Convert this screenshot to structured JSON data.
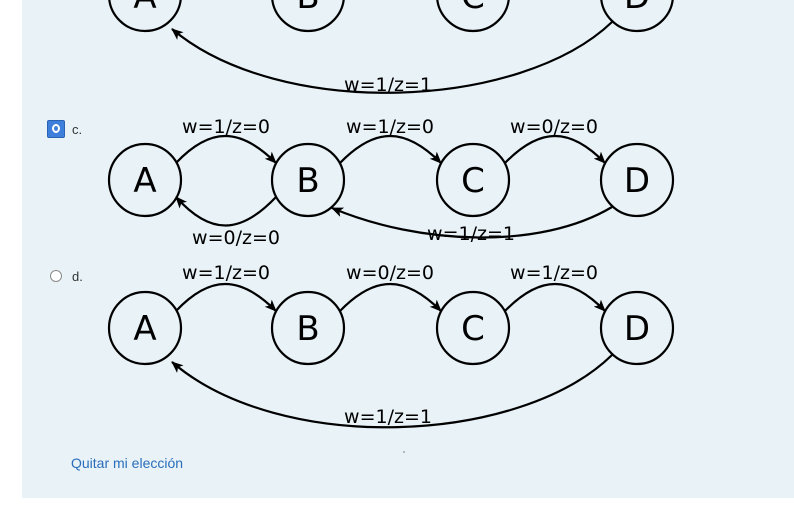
{
  "options": [
    {
      "letter": "",
      "selected": false,
      "nodes": [
        "A",
        "B",
        "C",
        "D"
      ],
      "edges": [
        {
          "label": "w=1/z=1"
        }
      ]
    },
    {
      "letter": "c.",
      "selected": true,
      "nodes": [
        "A",
        "B",
        "C",
        "D"
      ],
      "edges": [
        {
          "label": "w=1/z=0"
        },
        {
          "label": "w=1/z=0"
        },
        {
          "label": "w=0/z=0"
        },
        {
          "label": "w=0/z=0"
        },
        {
          "label": "w=1/z=1"
        }
      ]
    },
    {
      "letter": "d.",
      "selected": false,
      "nodes": [
        "A",
        "B",
        "C",
        "D"
      ],
      "edges": [
        {
          "label": "w=1/z=0"
        },
        {
          "label": "w=0/z=0"
        },
        {
          "label": "w=1/z=0"
        },
        {
          "label": "w=1/z=1"
        }
      ]
    }
  ],
  "clear_choice": "Quitar mi elección"
}
